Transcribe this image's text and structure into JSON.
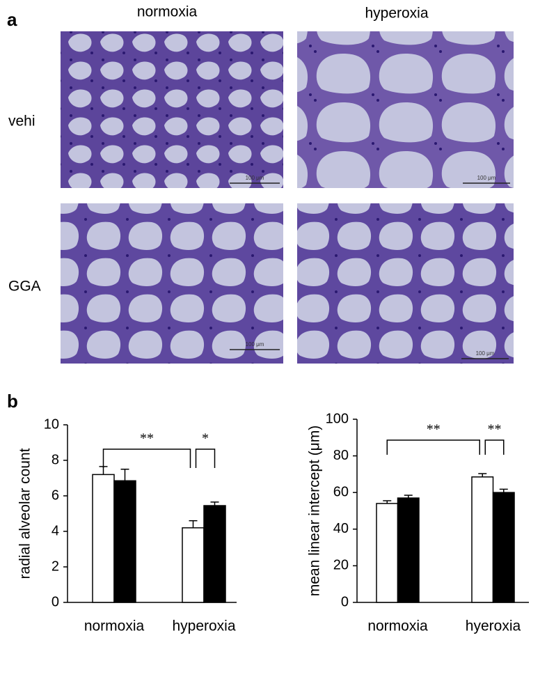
{
  "panel_a": {
    "label": "a",
    "columns": [
      "normoxia",
      "hyperoxia"
    ],
    "rows": [
      "vehi",
      "GGA"
    ],
    "scale_bar": "100 μm"
  },
  "panel_b": {
    "label": "b"
  },
  "chart_data": [
    {
      "type": "bar",
      "y_label": "radial alveolar count",
      "categories": [
        "normoxia",
        "hyperoxia"
      ],
      "series": [
        {
          "color": "#ffffff",
          "values": [
            7.2,
            4.2
          ],
          "errors": [
            0.45,
            0.4
          ]
        },
        {
          "color": "#000000",
          "values": [
            6.85,
            5.45
          ],
          "errors": [
            0.65,
            0.2
          ]
        }
      ],
      "edgecolor": "#000000",
      "ylim": [
        0,
        10
      ],
      "yticks": [
        0,
        2,
        4,
        6,
        8,
        10
      ],
      "annotations": [
        "**",
        "*"
      ]
    },
    {
      "type": "bar",
      "y_label": "mean linear intercept (μm)",
      "categories": [
        "normoxia",
        "hyeroxia"
      ],
      "series": [
        {
          "color": "#ffffff",
          "values": [
            54,
            68.5
          ],
          "errors": [
            1.5,
            1.8
          ]
        },
        {
          "color": "#000000",
          "values": [
            57,
            60
          ],
          "errors": [
            1.5,
            1.8
          ]
        }
      ],
      "edgecolor": "#000000",
      "ylim": [
        0,
        100
      ],
      "yticks": [
        0,
        20,
        40,
        60,
        80,
        100
      ],
      "annotations": [
        "**",
        "**"
      ]
    }
  ]
}
